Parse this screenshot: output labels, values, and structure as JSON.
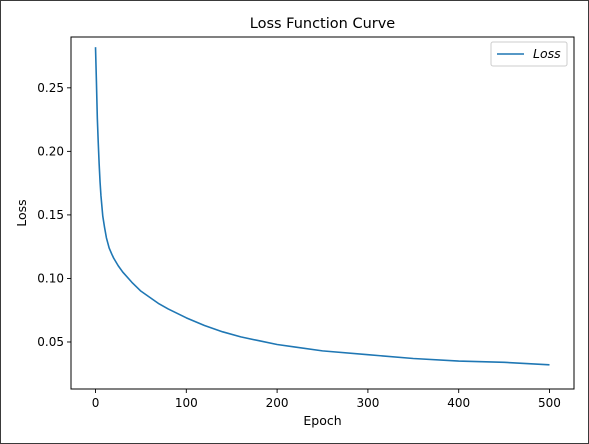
{
  "chart_data": {
    "type": "line",
    "title": "Loss Function Curve",
    "xlabel": "Epoch",
    "ylabel": "Loss",
    "xlim": [
      -27,
      527
    ],
    "ylim": [
      0.013,
      0.29
    ],
    "x_ticks": [
      0,
      100,
      200,
      300,
      400,
      500
    ],
    "x_tick_labels": [
      "0",
      "100",
      "200",
      "300",
      "400",
      "500"
    ],
    "y_ticks": [
      0.05,
      0.1,
      0.15,
      0.2,
      0.25
    ],
    "y_tick_labels": [
      "0.05",
      "0.10",
      "0.15",
      "0.20",
      "0.25"
    ],
    "grid": false,
    "legend_position": "top-right",
    "series": [
      {
        "name": "Loss",
        "color": "#1f77b4",
        "x": [
          0,
          1,
          2,
          3,
          4,
          5,
          6,
          8,
          10,
          12,
          15,
          18,
          20,
          25,
          30,
          40,
          50,
          60,
          70,
          80,
          100,
          120,
          140,
          160,
          180,
          200,
          220,
          250,
          300,
          350,
          400,
          450,
          500
        ],
        "y": [
          0.282,
          0.255,
          0.226,
          0.207,
          0.19,
          0.176,
          0.165,
          0.149,
          0.14,
          0.132,
          0.124,
          0.119,
          0.116,
          0.11,
          0.105,
          0.097,
          0.09,
          0.085,
          0.08,
          0.076,
          0.069,
          0.063,
          0.058,
          0.054,
          0.051,
          0.048,
          0.046,
          0.043,
          0.04,
          0.037,
          0.035,
          0.034,
          0.032
        ]
      }
    ]
  }
}
